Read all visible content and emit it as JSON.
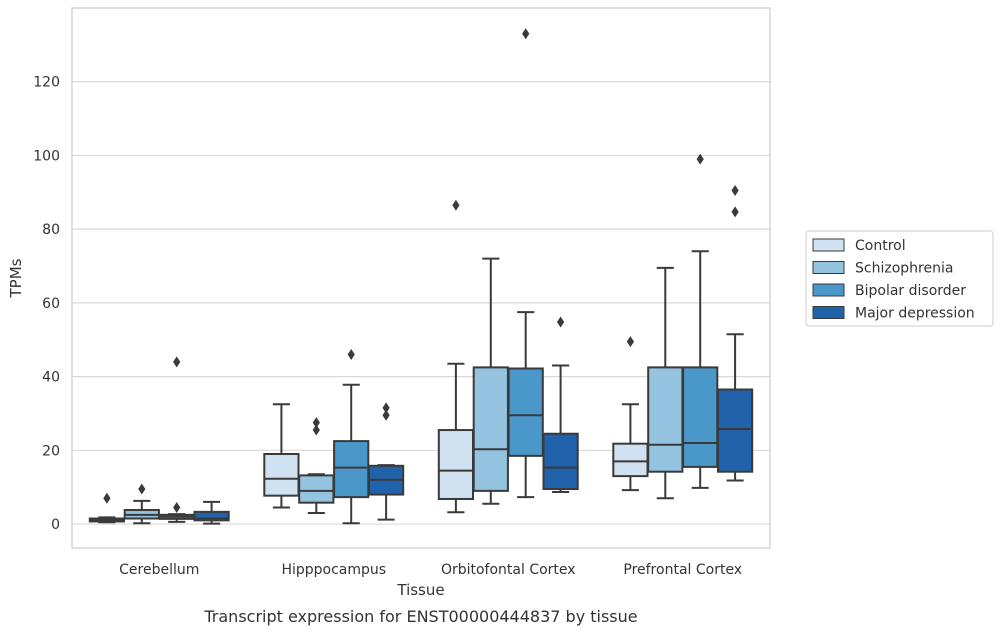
{
  "caption": "Transcript expression for ENST00000444837 by tissue",
  "chart_data": {
    "type": "box",
    "xlabel": "Tissue",
    "ylabel": "TPMs",
    "ylim": [
      -6.5,
      140
    ],
    "yticks": [
      0,
      20,
      40,
      60,
      80,
      100,
      120
    ],
    "grid": "horizontal",
    "legend_position": "right",
    "categories": [
      "Cerebellum",
      "Hipppocampus",
      "Orbitofontal Cortex",
      "Prefrontal Cortex"
    ],
    "series": [
      {
        "name": "Control",
        "color": "#d0e1f2",
        "boxes": [
          {
            "whislo": 0.5,
            "q1": 0.7,
            "med": 1.0,
            "q3": 1.5,
            "whishi": 1.8,
            "fliers": [
              7.0
            ]
          },
          {
            "whislo": 4.5,
            "q1": 7.7,
            "med": 12.3,
            "q3": 19.0,
            "whishi": 32.5,
            "fliers": []
          },
          {
            "whislo": 3.2,
            "q1": 6.8,
            "med": 14.5,
            "q3": 25.5,
            "whishi": 43.5,
            "fliers": [
              86.5
            ]
          },
          {
            "whislo": 9.2,
            "q1": 13.0,
            "med": 17.0,
            "q3": 21.8,
            "whishi": 32.5,
            "fliers": [
              49.5
            ]
          }
        ]
      },
      {
        "name": "Schizophrenia",
        "color": "#94c4df",
        "boxes": [
          {
            "whislo": 0.2,
            "q1": 1.5,
            "med": 2.5,
            "q3": 3.8,
            "whishi": 6.3,
            "fliers": [
              9.5
            ]
          },
          {
            "whislo": 3.0,
            "q1": 5.8,
            "med": 9.0,
            "q3": 13.2,
            "whishi": 13.5,
            "fliers": [
              25.5,
              27.5
            ]
          },
          {
            "whislo": 5.5,
            "q1": 9.0,
            "med": 20.3,
            "q3": 42.5,
            "whishi": 72.0,
            "fliers": []
          },
          {
            "whislo": 7.0,
            "q1": 14.2,
            "med": 21.5,
            "q3": 42.5,
            "whishi": 69.5,
            "fliers": []
          }
        ]
      },
      {
        "name": "Bipolar disorder",
        "color": "#4a98c9",
        "boxes": [
          {
            "whislo": 0.6,
            "q1": 1.4,
            "med": 2.0,
            "q3": 2.5,
            "whishi": 2.7,
            "fliers": [
              4.5,
              44.0
            ]
          },
          {
            "whislo": 0.2,
            "q1": 7.3,
            "med": 15.3,
            "q3": 22.5,
            "whishi": 37.8,
            "fliers": [
              46.0
            ]
          },
          {
            "whislo": 7.3,
            "q1": 18.5,
            "med": 29.5,
            "q3": 42.2,
            "whishi": 57.5,
            "fliers": [
              133.0
            ]
          },
          {
            "whislo": 9.8,
            "q1": 15.5,
            "med": 22.0,
            "q3": 42.5,
            "whishi": 74.0,
            "fliers": [
              99.0
            ]
          }
        ]
      },
      {
        "name": "Major depression",
        "color": "#2163aa",
        "boxes": [
          {
            "whislo": 0.1,
            "q1": 1.0,
            "med": 1.5,
            "q3": 3.3,
            "whishi": 6.0,
            "fliers": []
          },
          {
            "whislo": 1.2,
            "q1": 8.0,
            "med": 12.0,
            "q3": 15.8,
            "whishi": 16.0,
            "fliers": [
              29.5,
              31.5
            ]
          },
          {
            "whislo": 8.7,
            "q1": 9.5,
            "med": 15.3,
            "q3": 24.5,
            "whishi": 43.0,
            "fliers": [
              54.8
            ]
          },
          {
            "whislo": 11.8,
            "q1": 14.2,
            "med": 25.8,
            "q3": 36.5,
            "whishi": 51.5,
            "fliers": [
              84.7,
              90.5
            ]
          }
        ]
      }
    ]
  }
}
